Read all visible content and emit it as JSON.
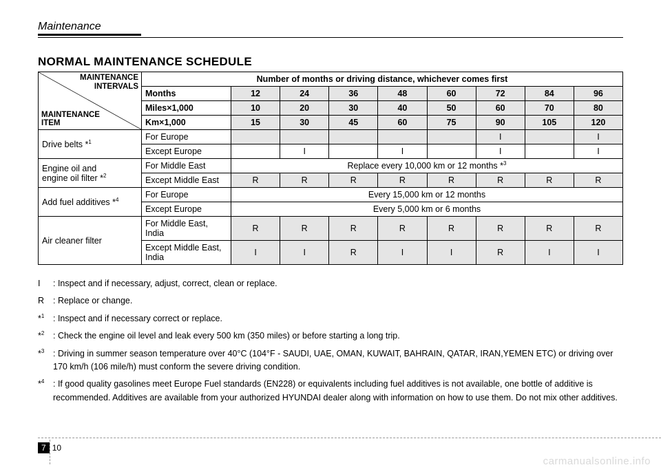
{
  "header": {
    "section": "Maintenance"
  },
  "title": "NORMAL MAINTENANCE SCHEDULE",
  "corner": {
    "top": "MAINTENANCE\nINTERVALS",
    "bottom": "MAINTENANCE\nITEM"
  },
  "banner": "Number of months or driving distance, whichever comes first",
  "colheads": {
    "months": {
      "label": "Months",
      "vals": [
        "12",
        "24",
        "36",
        "48",
        "60",
        "72",
        "84",
        "96"
      ]
    },
    "miles": {
      "label": "Miles×1,000",
      "vals": [
        "10",
        "20",
        "30",
        "40",
        "50",
        "60",
        "70",
        "80"
      ]
    },
    "km": {
      "label": "Km×1,000",
      "vals": [
        "15",
        "30",
        "45",
        "60",
        "75",
        "90",
        "105",
        "120"
      ]
    }
  },
  "rows": {
    "drive_belts": {
      "label": "Drive belts *",
      "sup": "1",
      "sub": [
        {
          "region": "For Europe",
          "cells": [
            "",
            "",
            "",
            "",
            "",
            "I",
            "",
            "I"
          ],
          "shaded": true
        },
        {
          "region": "Except Europe",
          "cells": [
            "",
            "I",
            "",
            "I",
            "",
            "I",
            "",
            "I"
          ],
          "shaded": false
        }
      ]
    },
    "engine_oil": {
      "label": "Engine oil and\nengine oil filter *",
      "sup": "2",
      "sub": [
        {
          "region": "For Middle East",
          "span_text": "Replace every 10,000 km or 12 months *",
          "span_sup": "3"
        },
        {
          "region": "Except Middle East",
          "cells": [
            "R",
            "R",
            "R",
            "R",
            "R",
            "R",
            "R",
            "R"
          ],
          "shaded": true
        }
      ]
    },
    "fuel_add": {
      "label": "Add fuel additives *",
      "sup": "4",
      "sub": [
        {
          "region": "For Europe",
          "span_text": "Every 15,000 km or 12 months"
        },
        {
          "region": "Except Europe",
          "span_text": "Every 5,000 km or 6 months"
        }
      ]
    },
    "air_cleaner": {
      "label": "Air cleaner filter",
      "sub": [
        {
          "region": "For Middle East,\nIndia",
          "cells": [
            "R",
            "R",
            "R",
            "R",
            "R",
            "R",
            "R",
            "R"
          ],
          "shaded": true
        },
        {
          "region": "Except Middle East,\nIndia",
          "cells": [
            "I",
            "I",
            "R",
            "I",
            "I",
            "R",
            "I",
            "I"
          ],
          "shaded": true
        }
      ]
    }
  },
  "notes": [
    {
      "key": "I",
      "text": ": Inspect and if necessary, adjust, correct, clean or replace."
    },
    {
      "key": "R",
      "text": ": Replace or change."
    },
    {
      "key": "*1",
      "sup": "1",
      "pre": "*",
      "text": ": Inspect and if necessary correct or replace."
    },
    {
      "key": "*2",
      "sup": "2",
      "pre": "*",
      "text": ": Check the engine oil level and leak every 500 km (350 miles) or before starting a long trip."
    },
    {
      "key": "*3",
      "sup": "3",
      "pre": "*",
      "text": ": Driving in summer season temperature over 40°C (104°F - SAUDI, UAE, OMAN, KUWAIT, BAHRAIN, QATAR, IRAN,YEMEN ETC) or driving over 170 km/h (106 mile/h) must conform the severe driving condition."
    },
    {
      "key": "*4",
      "sup": "4",
      "pre": "*",
      "text": ": If good quality gasolines meet Europe Fuel standards (EN228) or equivalents including fuel additives is not available, one bottle of additive is recommended. Additives are available from your authorized HYUNDAI dealer along with information on how to use them. Do not mix other additives."
    }
  ],
  "footer": {
    "chapter": "7",
    "page": "10"
  },
  "watermark": "carmanualsonline.info",
  "colors": {
    "shade": "#e5e5e5",
    "border": "#000000",
    "watermark": "#d9d9d9",
    "dash": "#999999"
  }
}
